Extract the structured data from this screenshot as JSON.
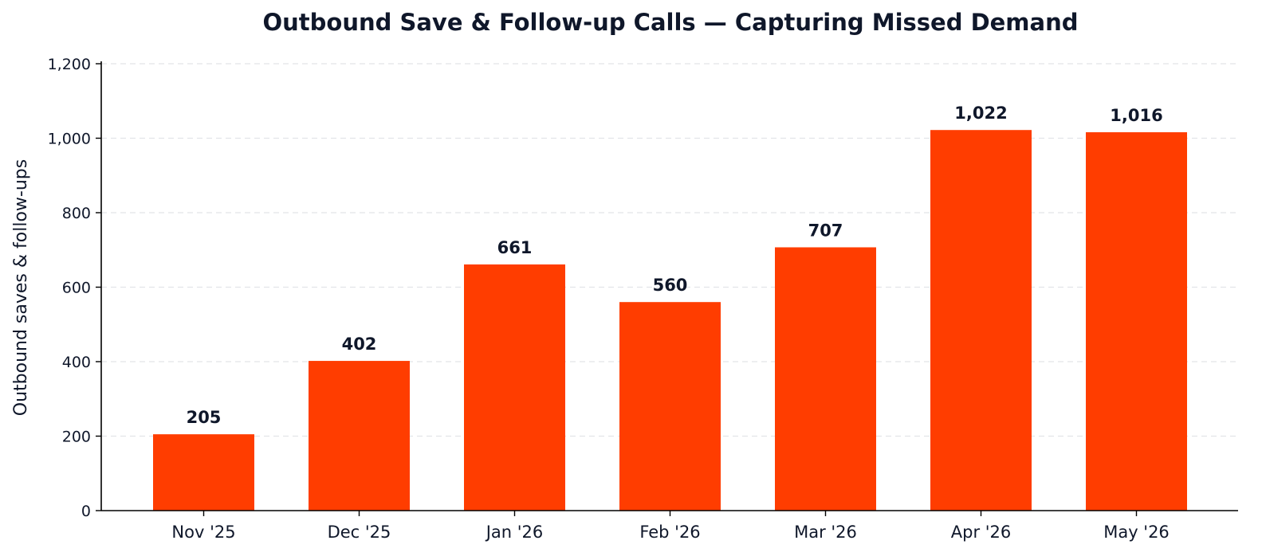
{
  "chart_data": {
    "type": "bar",
    "title": "Outbound Save & Follow-up Calls — Capturing Missed Demand",
    "xlabel": "",
    "ylabel": "Outbound saves & follow-ups",
    "categories": [
      "Nov '25",
      "Dec '25",
      "Jan '26",
      "Feb '26",
      "Mar '26",
      "Apr '26",
      "May '26"
    ],
    "values": [
      205,
      402,
      661,
      560,
      707,
      1022,
      1016
    ],
    "data_labels": [
      "205",
      "402",
      "661",
      "560",
      "707",
      "1,022",
      "1,016"
    ],
    "ylim": [
      0,
      1200
    ],
    "yticks": [
      0,
      200,
      400,
      600,
      800,
      1000,
      1200
    ],
    "ytick_labels": [
      "0",
      "200",
      "400",
      "600",
      "800",
      "1,000",
      "1,200"
    ],
    "grid": "horizontal dashed",
    "bar_color": "#ff3d00",
    "legend": "none"
  }
}
